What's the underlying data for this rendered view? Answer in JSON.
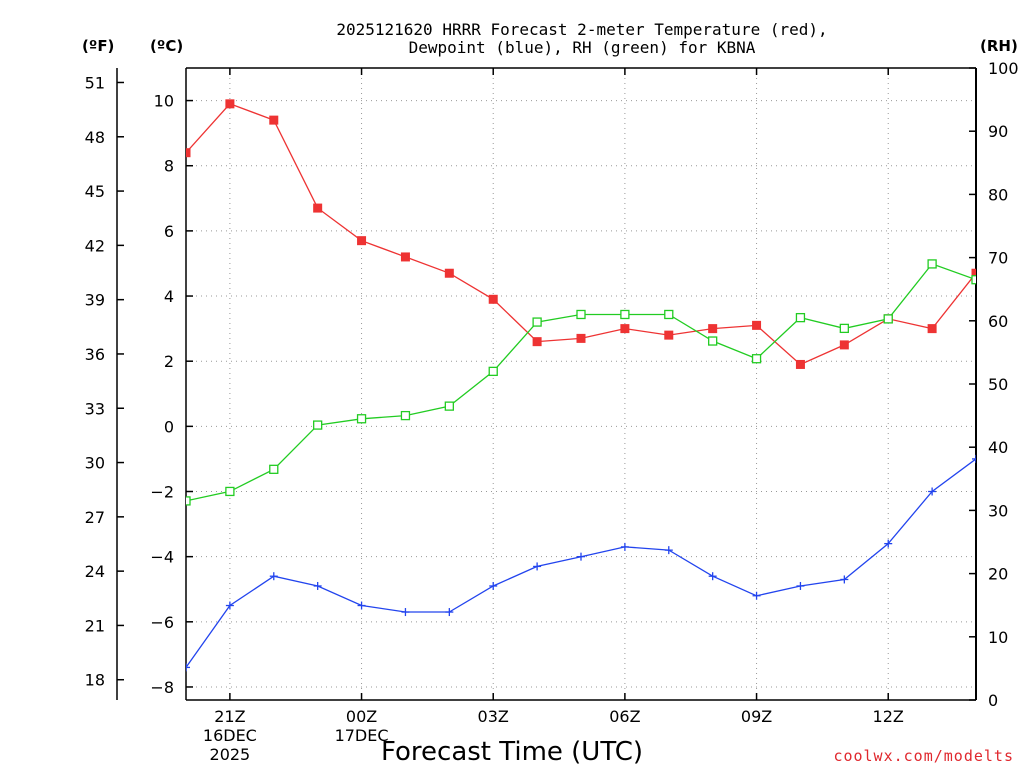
{
  "chart_data": {
    "type": "line",
    "title_lines": [
      "2025121620 HRRR Forecast 2-meter Temperature (red),",
      "Dewpoint (blue), RH (green) for KBNA"
    ],
    "xlabel": "Forecast Time (UTC)",
    "credit": "coolwx.com/modelts",
    "left_unit_f": "(ºF)",
    "left_unit_c": "(ºC)",
    "right_unit": "(RH)",
    "x_range": [
      20,
      38
    ],
    "x_ticks": [
      {
        "x": 21,
        "lines": [
          "21Z",
          "16DEC",
          "2025"
        ]
      },
      {
        "x": 24,
        "lines": [
          "00Z",
          "17DEC"
        ]
      },
      {
        "x": 27,
        "lines": [
          "03Z"
        ]
      },
      {
        "x": 30,
        "lines": [
          "06Z"
        ]
      },
      {
        "x": 33,
        "lines": [
          "09Z"
        ]
      },
      {
        "x": 36,
        "lines": [
          "12Z"
        ]
      }
    ],
    "celsius_axis": {
      "range": [
        -8.4,
        11.0
      ],
      "ticks": [
        -8,
        -6,
        -4,
        -2,
        0,
        2,
        4,
        6,
        8,
        10
      ]
    },
    "fahrenheit_ticks": [
      18,
      21,
      24,
      27,
      30,
      33,
      36,
      39,
      42,
      45,
      48,
      51
    ],
    "rh_axis": {
      "range": [
        0,
        100
      ],
      "ticks": [
        0,
        10,
        20,
        30,
        40,
        50,
        60,
        70,
        80,
        90,
        100
      ]
    },
    "x": [
      20,
      21,
      22,
      23,
      24,
      25,
      26,
      27,
      28,
      29,
      30,
      31,
      32,
      33,
      34,
      35,
      36,
      37,
      38
    ],
    "series": [
      {
        "name": "Temperature",
        "axis": "celsius",
        "color": "#ee3333",
        "marker": "filled-square",
        "values": [
          8.4,
          9.9,
          9.4,
          6.7,
          5.7,
          5.2,
          4.7,
          3.9,
          2.6,
          2.7,
          3.0,
          2.8,
          3.0,
          3.1,
          1.9,
          2.5,
          3.3,
          3.0,
          4.7
        ]
      },
      {
        "name": "Dewpoint",
        "axis": "celsius",
        "color": "#2244ee",
        "marker": "plus",
        "values": [
          -7.4,
          -5.5,
          -4.6,
          -4.9,
          -5.5,
          -5.7,
          -5.7,
          -4.9,
          -4.3,
          -4.0,
          -3.7,
          -3.8,
          -4.6,
          -5.2,
          -4.9,
          -4.7,
          -3.6,
          -2.0,
          -1.0
        ]
      },
      {
        "name": "Relative Humidity",
        "axis": "rh",
        "color": "#22cc22",
        "marker": "open-square",
        "values": [
          31.5,
          33.0,
          36.5,
          43.5,
          44.5,
          45.0,
          46.5,
          52.0,
          59.8,
          61.0,
          61.0,
          61.0,
          56.8,
          54.0,
          60.5,
          58.8,
          60.3,
          69.0,
          66.5
        ]
      }
    ]
  }
}
